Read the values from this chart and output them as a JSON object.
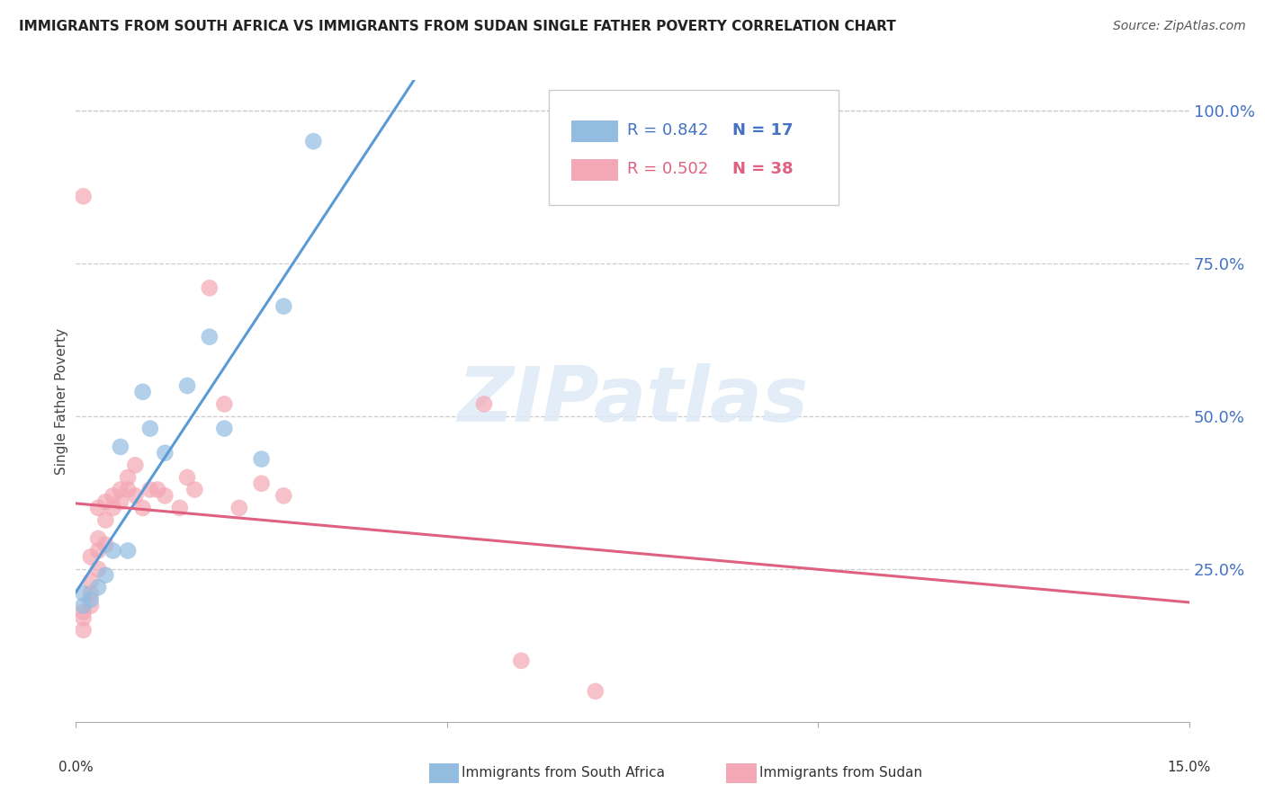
{
  "title": "IMMIGRANTS FROM SOUTH AFRICA VS IMMIGRANTS FROM SUDAN SINGLE FATHER POVERTY CORRELATION CHART",
  "source": "Source: ZipAtlas.com",
  "ylabel": "Single Father Poverty",
  "ytick_labels": [
    "100.0%",
    "75.0%",
    "50.0%",
    "25.0%"
  ],
  "ytick_values": [
    1.0,
    0.75,
    0.5,
    0.25
  ],
  "xlim": [
    0.0,
    0.15
  ],
  "ylim": [
    0.0,
    1.05
  ],
  "r_south_africa": 0.842,
  "n_south_africa": 17,
  "r_sudan": 0.502,
  "n_sudan": 38,
  "color_south_africa": "#92bce0",
  "color_sudan": "#f4a7b4",
  "line_color_south_africa": "#5b9bd5",
  "line_color_sudan": "#e06080",
  "watermark_color": "#deeaf7",
  "south_africa_x": [
    0.001,
    0.001,
    0.002,
    0.003,
    0.004,
    0.005,
    0.006,
    0.007,
    0.009,
    0.01,
    0.012,
    0.015,
    0.018,
    0.02,
    0.025,
    0.028,
    0.032
  ],
  "south_africa_y": [
    0.19,
    0.21,
    0.2,
    0.22,
    0.24,
    0.28,
    0.45,
    0.28,
    0.54,
    0.48,
    0.44,
    0.55,
    0.63,
    0.48,
    0.43,
    0.68,
    0.95
  ],
  "sudan_x": [
    0.001,
    0.001,
    0.001,
    0.001,
    0.002,
    0.002,
    0.002,
    0.002,
    0.003,
    0.003,
    0.003,
    0.003,
    0.004,
    0.004,
    0.004,
    0.005,
    0.005,
    0.006,
    0.006,
    0.007,
    0.007,
    0.008,
    0.008,
    0.009,
    0.01,
    0.011,
    0.012,
    0.014,
    0.015,
    0.016,
    0.018,
    0.02,
    0.022,
    0.025,
    0.028,
    0.055,
    0.06,
    0.07
  ],
  "sudan_y": [
    0.86,
    0.15,
    0.17,
    0.18,
    0.19,
    0.21,
    0.23,
    0.27,
    0.25,
    0.28,
    0.3,
    0.35,
    0.29,
    0.33,
    0.36,
    0.35,
    0.37,
    0.36,
    0.38,
    0.38,
    0.4,
    0.37,
    0.42,
    0.35,
    0.38,
    0.38,
    0.37,
    0.35,
    0.4,
    0.38,
    0.71,
    0.52,
    0.35,
    0.39,
    0.37,
    0.52,
    0.1,
    0.05
  ]
}
